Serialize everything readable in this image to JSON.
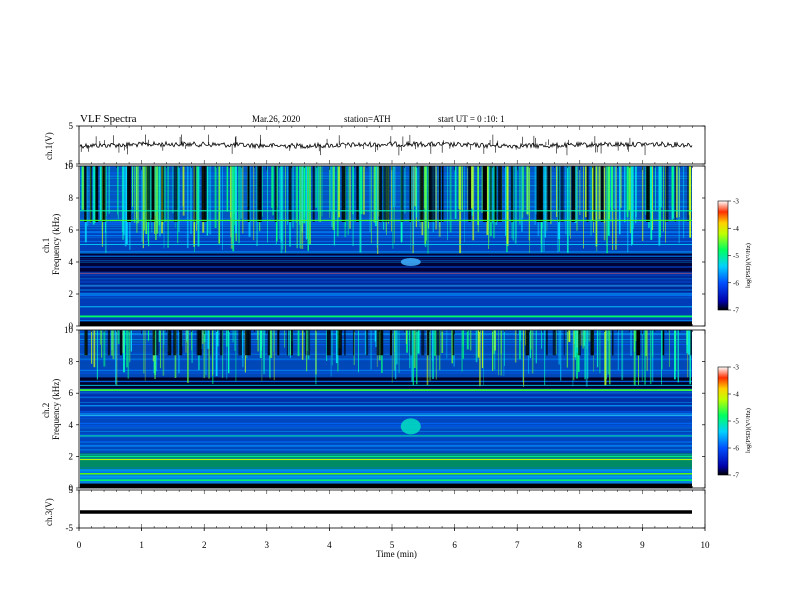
{
  "header": {
    "title": "VLF Spectra",
    "date": "Mar.26, 2020",
    "station": "station=ATH",
    "start": "start UT =  0 :10: 1"
  },
  "chart_data": [
    {
      "type": "line",
      "panel": "ch1-waveform",
      "ylabel": "ch.1(V)",
      "ylim": [
        -5,
        5
      ],
      "yticks": [
        "5",
        "-5"
      ],
      "xlim": [
        0,
        10
      ],
      "description": "noisy trace around 0 V"
    },
    {
      "type": "heatmap",
      "panel": "ch1-spectrogram",
      "ylabel": "ch.1\nFrequency (kHz)",
      "ylabel_lines": [
        "ch.1",
        "Frequency (kHz)"
      ],
      "ylim": [
        0,
        10
      ],
      "yticks": [
        "0",
        "2",
        "4",
        "6",
        "8",
        "10"
      ],
      "xlim": [
        0,
        10
      ],
      "colorbar": {
        "label": "log(PSD)(V²/Hz)",
        "range": [
          -7,
          -3
        ],
        "ticks": [
          "-3",
          "-4",
          "-5",
          "-6",
          "-7"
        ]
      }
    },
    {
      "type": "heatmap",
      "panel": "ch2-spectrogram",
      "ylabel_lines": [
        "ch.2",
        "Frequency (kHz)"
      ],
      "ylim": [
        0,
        10
      ],
      "yticks": [
        "0",
        "2",
        "4",
        "6",
        "8",
        "10"
      ],
      "xlim": [
        0,
        10
      ],
      "colorbar": {
        "label": "log(PSD)(V²/Hz)",
        "range": [
          -7,
          -3
        ],
        "ticks": [
          "-3",
          "-4",
          "-5",
          "-6",
          "-7"
        ]
      }
    },
    {
      "type": "line",
      "panel": "ch3-waveform",
      "ylabel": "ch.3(V)",
      "ylim": [
        -5,
        5
      ],
      "yticks": [
        "5",
        "-5"
      ],
      "xlim": [
        0,
        10
      ],
      "xticks": [
        "0",
        "1",
        "2",
        "3",
        "4",
        "5",
        "6",
        "7",
        "8",
        "9",
        "10"
      ],
      "xlabel": "Time (min)",
      "description": "flat trace near -2 V"
    }
  ]
}
